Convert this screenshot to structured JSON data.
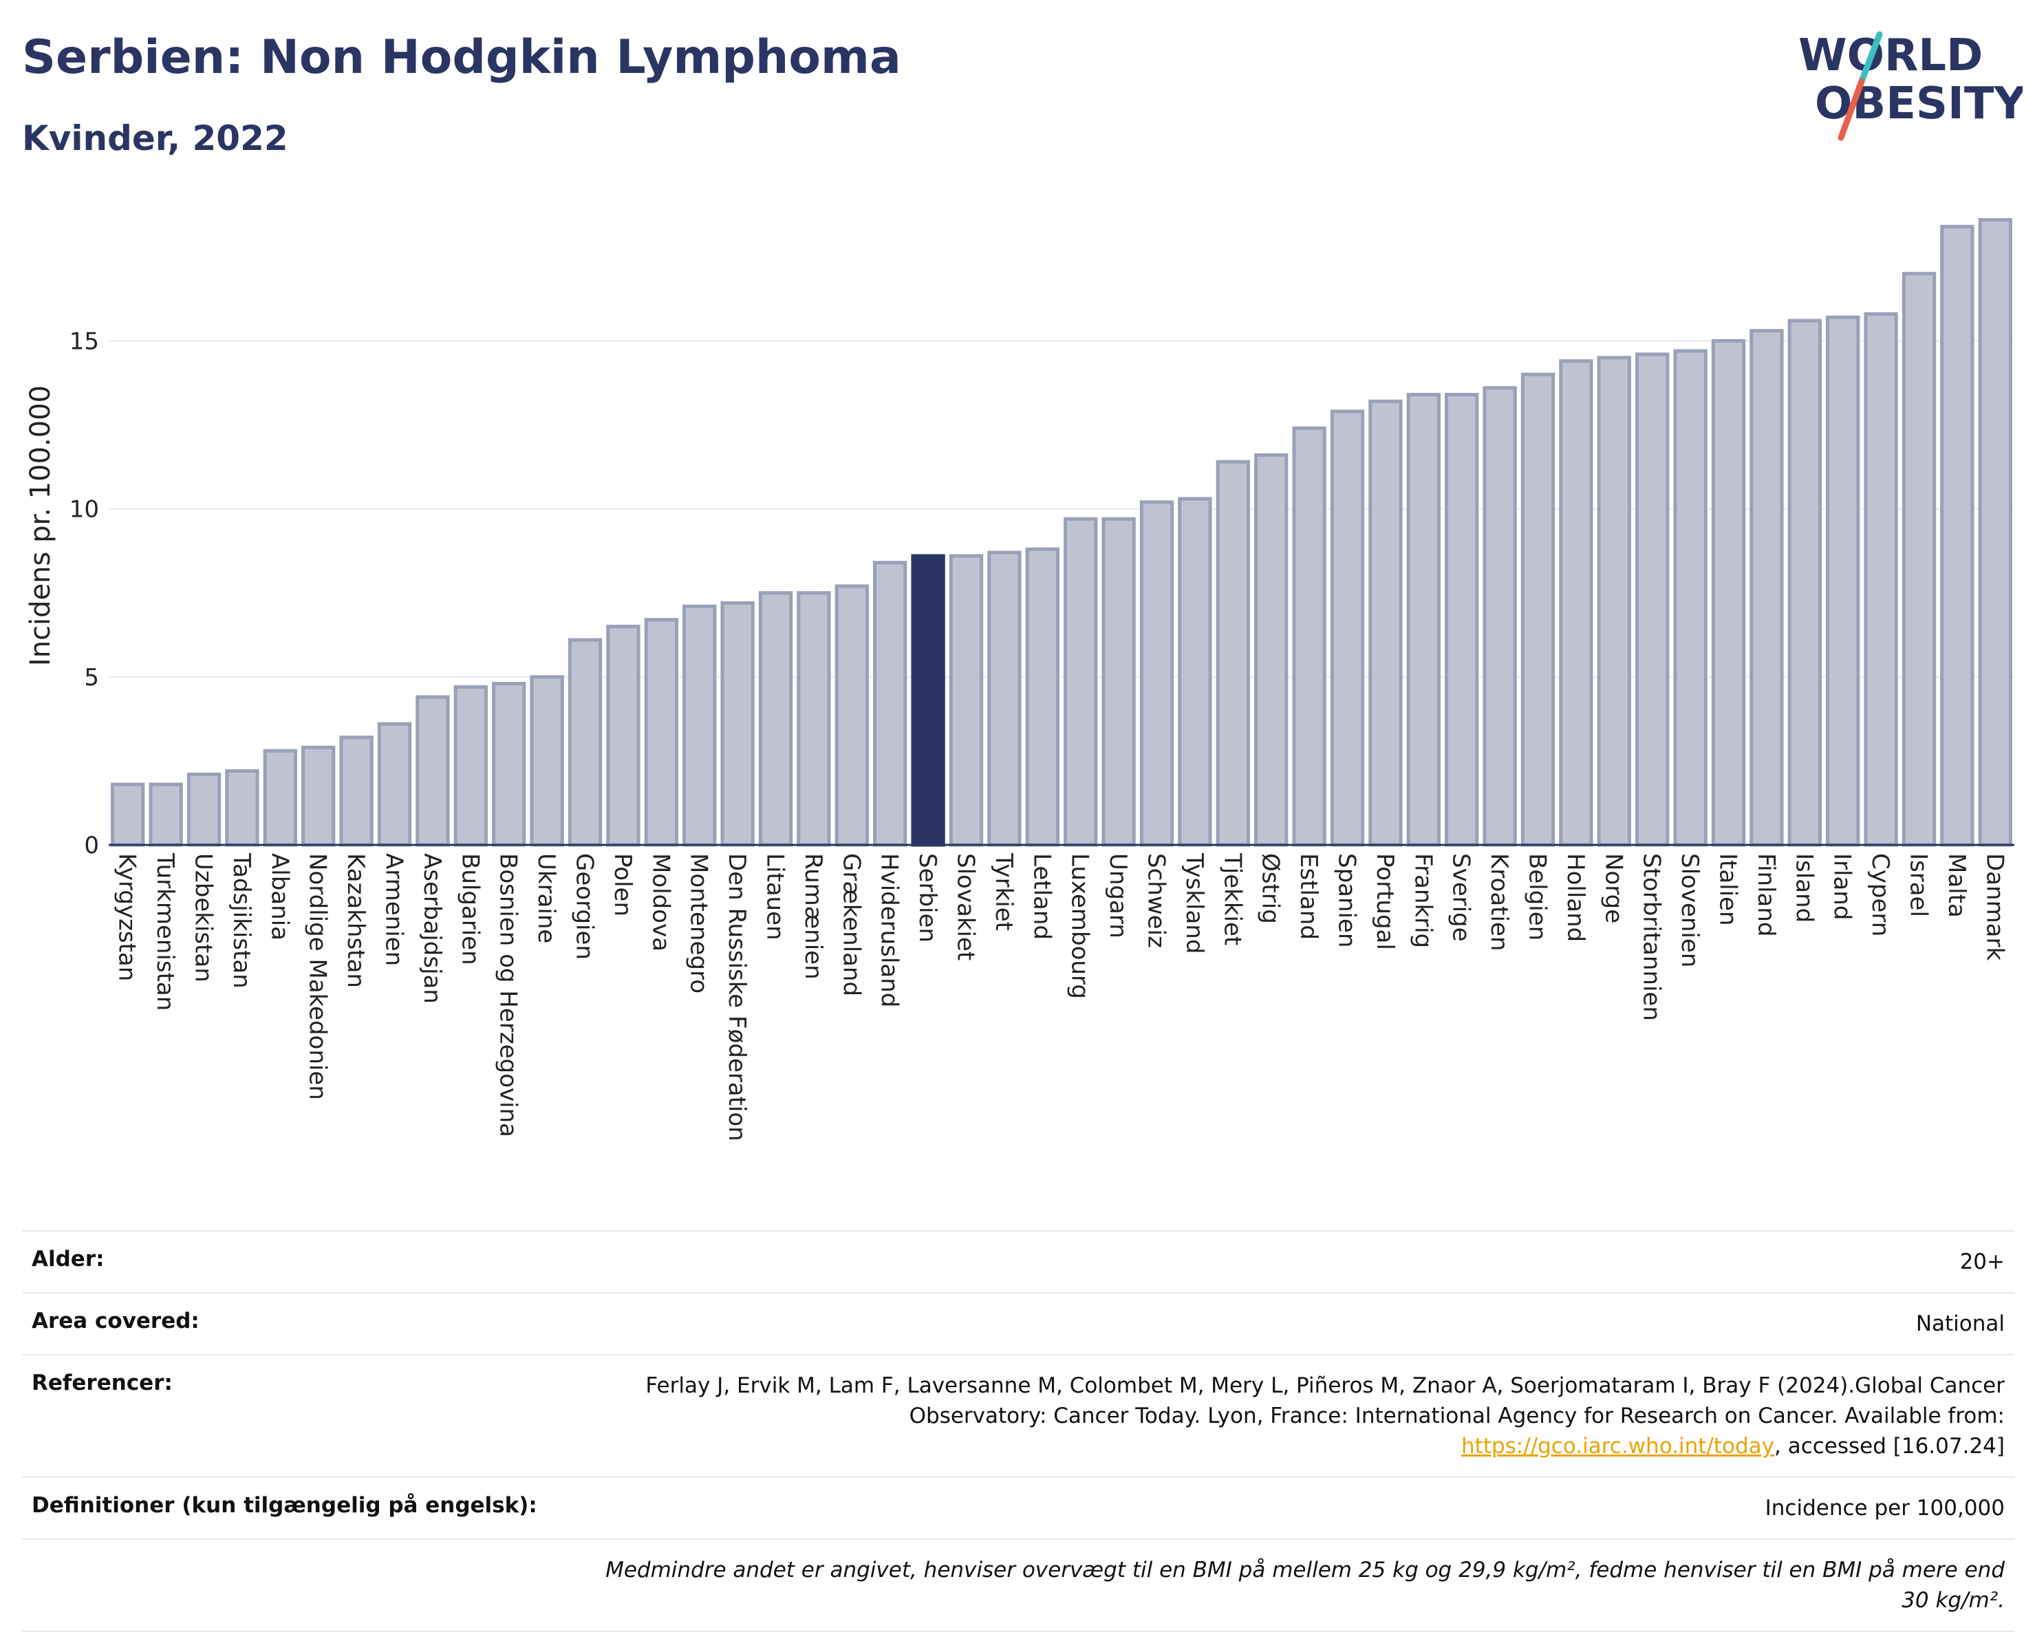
{
  "header": {
    "title": "Serbien: Non Hodgkin Lymphoma",
    "subtitle": "Kvinder, 2022"
  },
  "logo": {
    "line1": "WORLD",
    "line2": "OBESITY",
    "slash_color_top": "#3bbfbf",
    "slash_color_bottom": "#e8604c"
  },
  "colors": {
    "bar": "#bfc3d1",
    "bar_border": "#9aa0b8",
    "highlight": "#2b3563",
    "grid": "#e5e7ee"
  },
  "chart_data": {
    "type": "bar",
    "ylabel": "Incidens pr. 100.000",
    "xlabel": "",
    "ylim": [
      0,
      19
    ],
    "yticks": [
      0,
      5,
      10,
      15
    ],
    "grid": true,
    "highlight": "Serbien",
    "categories": [
      "Kyrgyzstan",
      "Turkmenistan",
      "Uzbekistan",
      "Tadsjikistan",
      "Albania",
      "Nordlige Makedonien",
      "Kazakhstan",
      "Armenien",
      "Aserbajdsjan",
      "Bulgarien",
      "Bosnien og Herzegovina",
      "Ukraine",
      "Georgien",
      "Polen",
      "Moldova",
      "Montenegro",
      "Den Russiske Føderation",
      "Litauen",
      "Rumænien",
      "Grækenland",
      "Hviderusland",
      "Serbien",
      "Slovakiet",
      "Tyrkiet",
      "Letland",
      "Luxembourg",
      "Ungarn",
      "Schweiz",
      "Tyskland",
      "Tjekkiet",
      "Østrig",
      "Estland",
      "Spanien",
      "Portugal",
      "Frankrig",
      "Sverige",
      "Kroatien",
      "Belgien",
      "Holland",
      "Norge",
      "Storbritannien",
      "Slovenien",
      "Italien",
      "Finland",
      "Island",
      "Irland",
      "Cypern",
      "Israel",
      "Malta",
      "Danmark"
    ],
    "values": [
      1.8,
      1.8,
      2.1,
      2.2,
      2.8,
      2.9,
      3.2,
      3.6,
      4.4,
      4.7,
      4.8,
      5.0,
      6.1,
      6.5,
      6.7,
      7.1,
      7.2,
      7.5,
      7.5,
      7.7,
      8.4,
      8.6,
      8.6,
      8.7,
      8.8,
      9.7,
      9.7,
      10.2,
      10.3,
      11.4,
      11.6,
      12.4,
      12.9,
      13.2,
      13.4,
      13.4,
      13.6,
      14.0,
      14.4,
      14.5,
      14.6,
      14.7,
      15.0,
      15.3,
      15.6,
      15.7,
      15.8,
      17.0,
      18.4,
      18.6
    ]
  },
  "meta": {
    "age_label": "Alder:",
    "age_value": "20+",
    "area_label": "Area covered:",
    "area_value": "National",
    "ref_label": "Referencer:",
    "ref_text_1": "Ferlay J, Ervik M, Lam F, Laversanne M, Colombet M, Mery L, Piñeros M, Znaor A, Soerjomataram I, Bray F (2024).Global Cancer Observatory: Cancer Today. Lyon, France: International Agency for Research on Cancer. Available from: ",
    "ref_link": "https://gco.iarc.who.int/today",
    "ref_text_2": ", accessed [16.07.24]",
    "def_label": "Definitioner (kun tilgængelig på engelsk):",
    "def_value": "Incidence per 100,000",
    "note": "Medmindre andet er angivet, henviser overvægt til en BMI på mellem 25 kg og 29,9 kg/m², fedme henviser til en BMI på mere end 30 kg/m²."
  }
}
